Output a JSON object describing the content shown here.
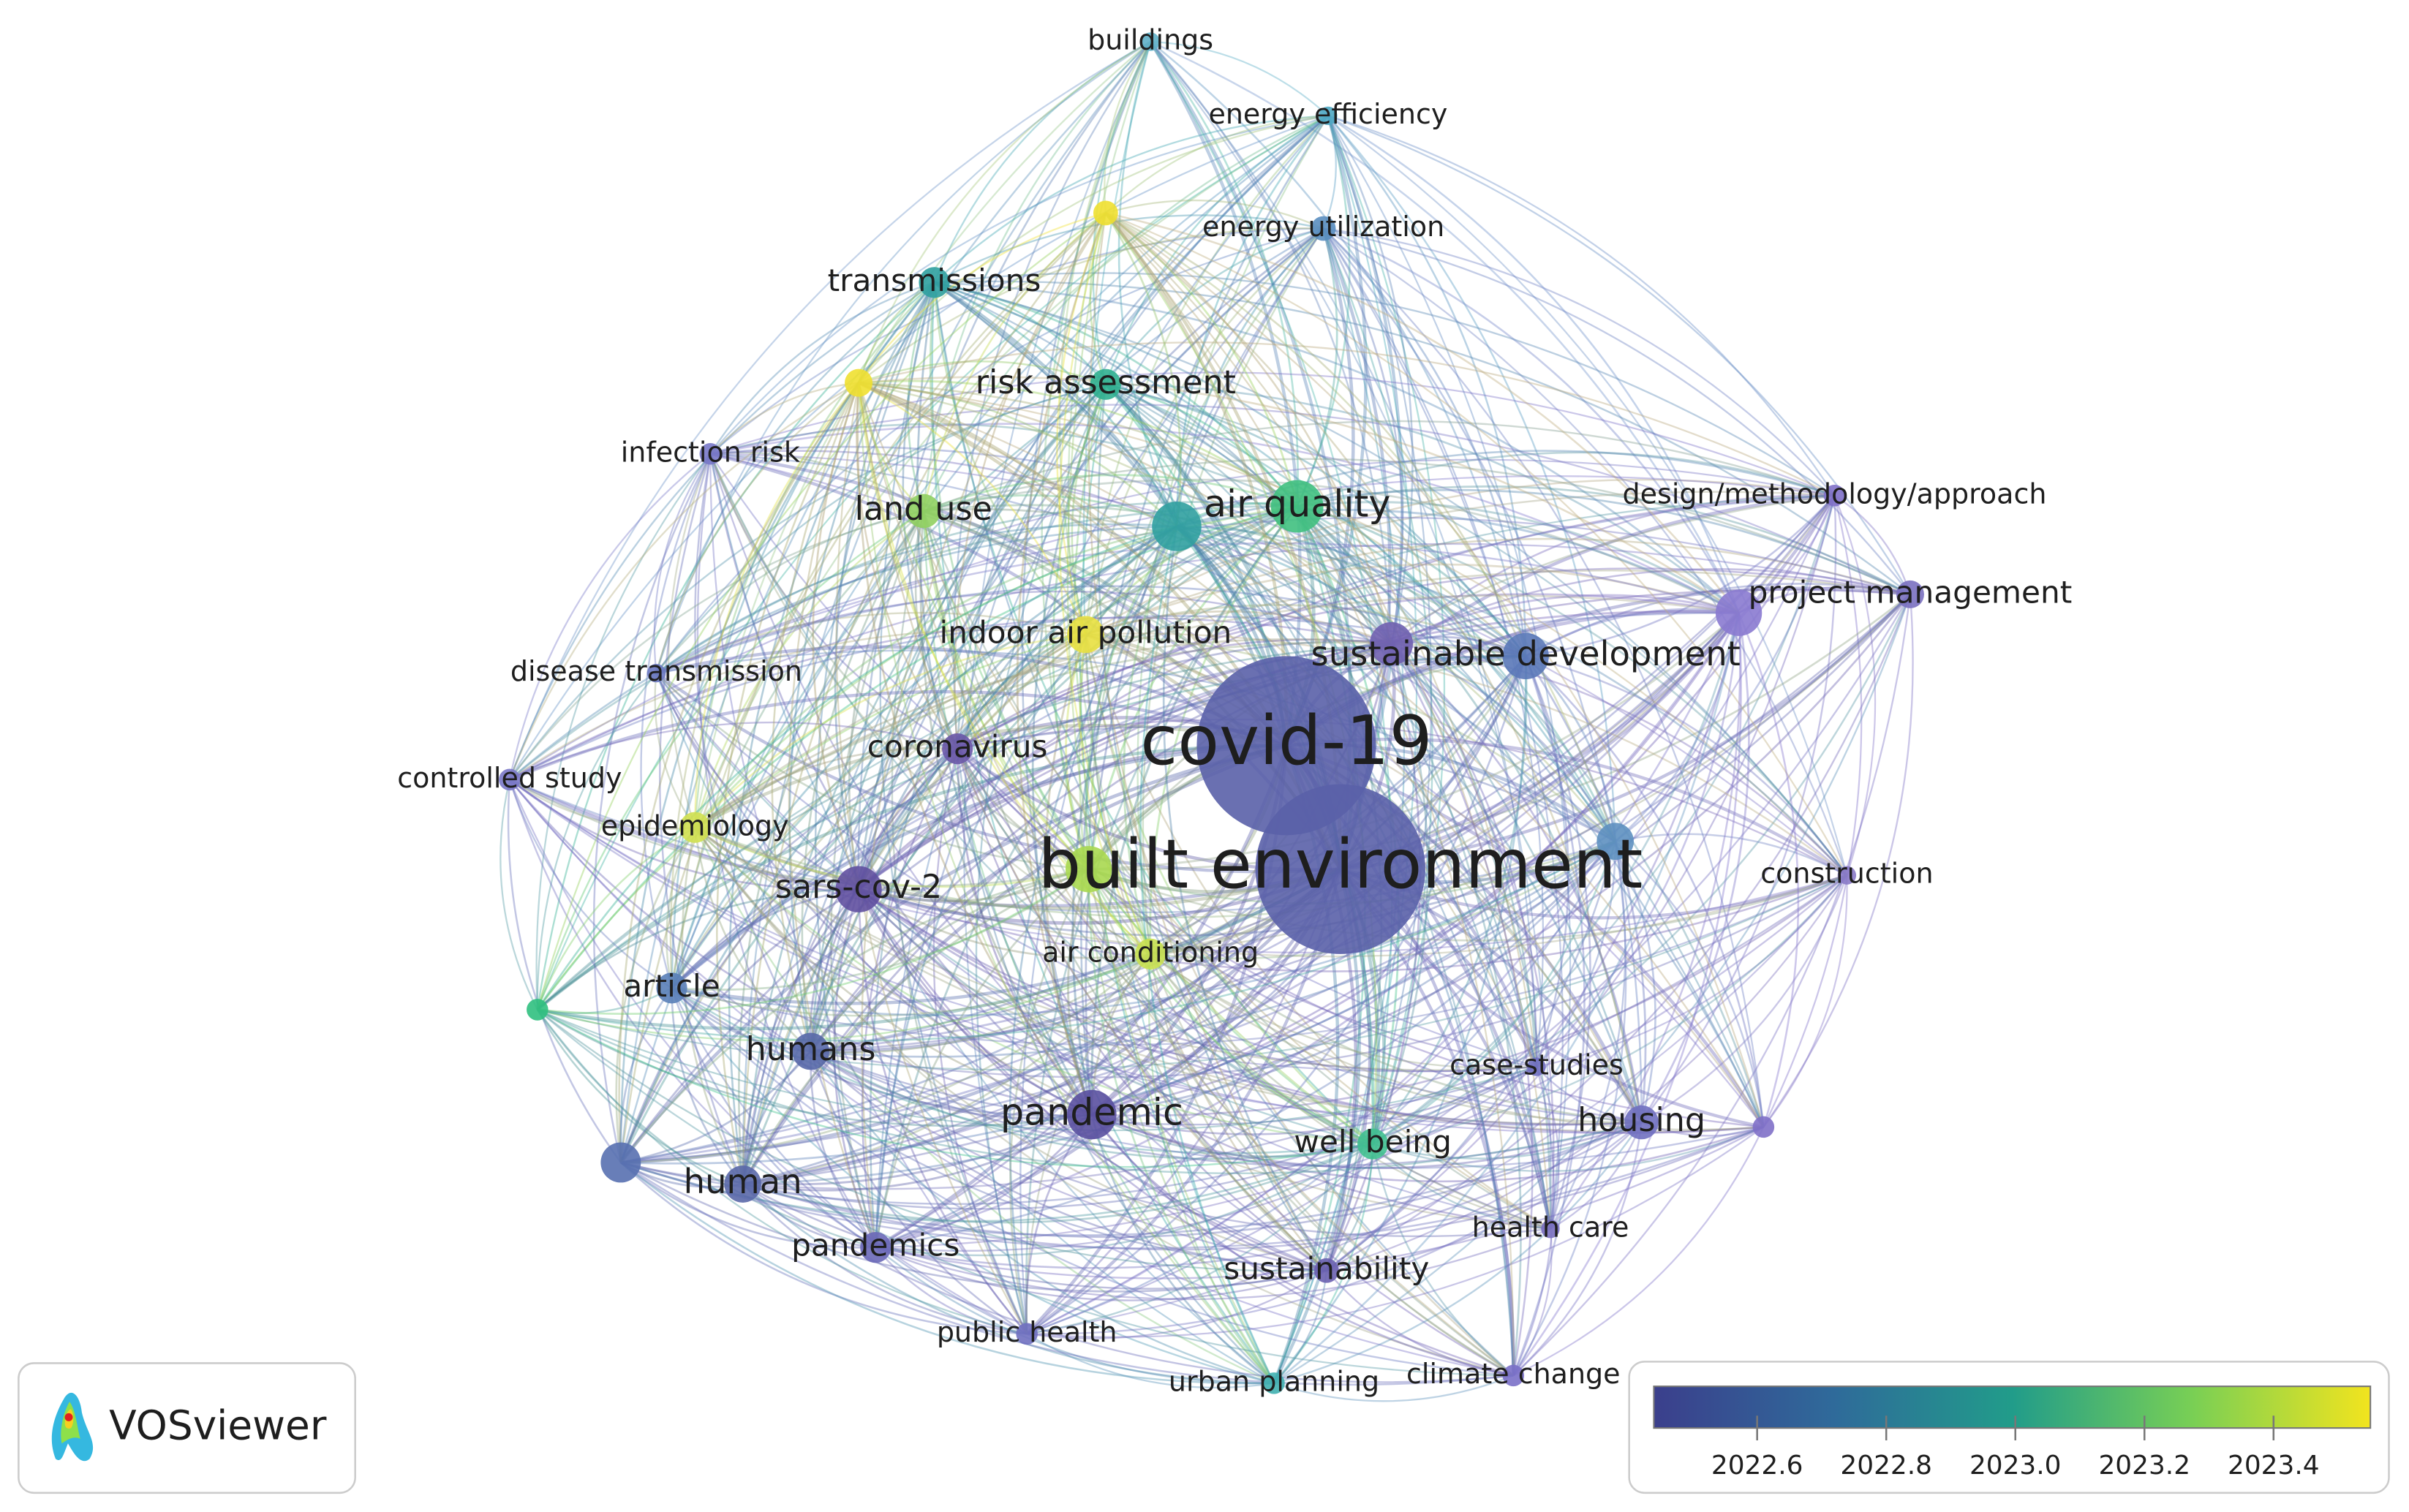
{
  "nodes": [
    {
      "label": "buildings"
    },
    {
      "label": "energy efficiency"
    },
    {
      "label": "energy utilization"
    },
    {
      "label": "transmissions"
    },
    {
      "label": "risk assessment"
    },
    {
      "label": "infection risk"
    },
    {
      "label": "land use"
    },
    {
      "label": "air quality"
    },
    {
      "label": "design/methodology/approach"
    },
    {
      "label": "project management"
    },
    {
      "label": "indoor air pollution"
    },
    {
      "label": "sustainable development"
    },
    {
      "label": "disease transmission"
    },
    {
      "label": "covid-19"
    },
    {
      "label": "coronavirus"
    },
    {
      "label": "controlled study"
    },
    {
      "label": "epidemiology"
    },
    {
      "label": "built environment"
    },
    {
      "label": "sars-cov-2"
    },
    {
      "label": "construction"
    },
    {
      "label": "air conditioning"
    },
    {
      "label": "article"
    },
    {
      "label": "humans"
    },
    {
      "label": "case-studies"
    },
    {
      "label": "pandemic"
    },
    {
      "label": "housing"
    },
    {
      "label": "well being"
    },
    {
      "label": "human"
    },
    {
      "label": "health care"
    },
    {
      "label": "pandemics"
    },
    {
      "label": "sustainability"
    },
    {
      "label": "public health"
    },
    {
      "label": "urban planning"
    },
    {
      "label": "climate change"
    }
  ],
  "logo": "VOSviewer",
  "color_scale": {
    "range": [
      2022.44,
      2023.55
    ],
    "ticks": [
      {
        "value": 2022.6,
        "label": "2022.6"
      },
      {
        "value": 2022.8,
        "label": "2022.8"
      },
      {
        "value": 2023.0,
        "label": "2023.0"
      },
      {
        "value": 2023.2,
        "label": "2023.2"
      },
      {
        "value": 2023.4,
        "label": "2023.4"
      }
    ]
  }
}
